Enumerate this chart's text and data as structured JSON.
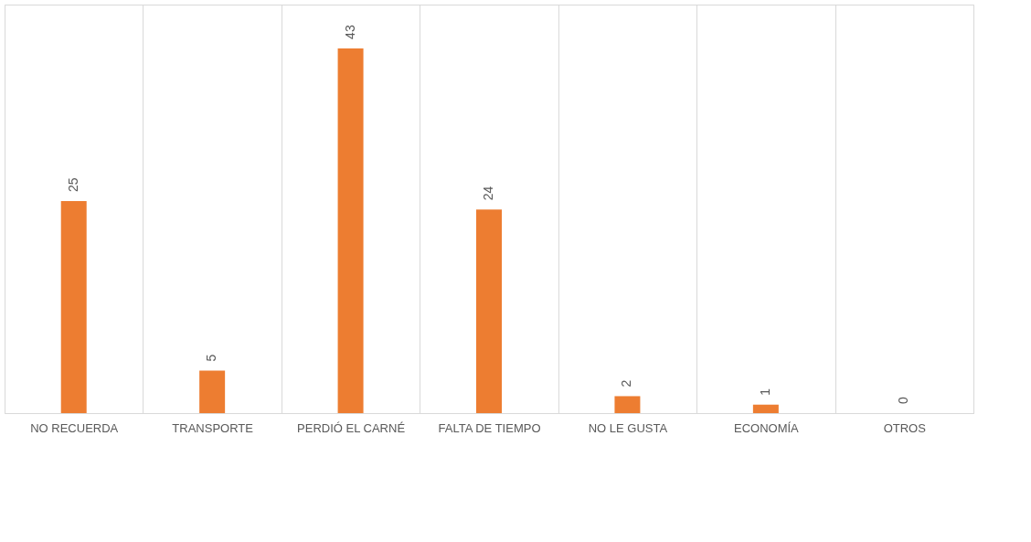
{
  "chart_data": {
    "type": "bar",
    "categories": [
      "NO RECUERDA",
      "TRANSPORTE",
      "PERDIÓ EL CARNÉ",
      "FALTA DE TIEMPO",
      "NO LE GUSTA",
      "ECONOMÍA",
      "OTROS"
    ],
    "values": [
      25,
      5,
      43,
      24,
      2,
      1,
      0
    ],
    "color": "#ed7d31",
    "data_labels": true,
    "grid": "x"
  }
}
